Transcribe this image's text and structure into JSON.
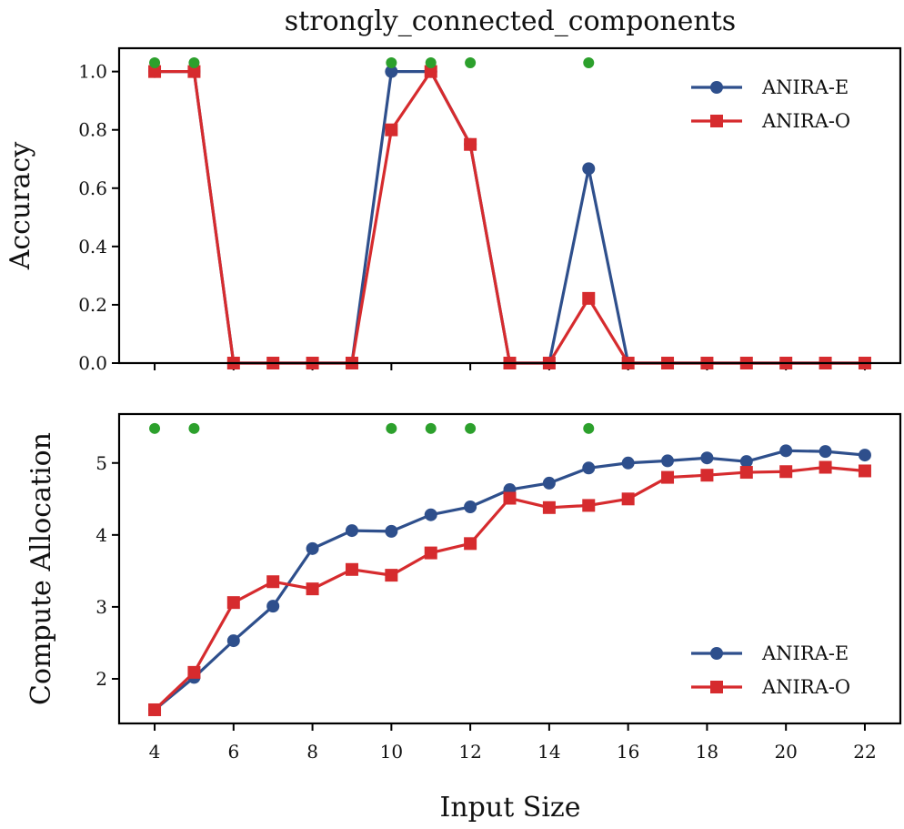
{
  "figure": {
    "title": "strongly_connected_components",
    "xlabel": "Input Size"
  },
  "colors": {
    "anira_e": "#2e4f8c",
    "anira_o": "#d62b2e",
    "marker": "#2ca02c"
  },
  "chart_data": [
    {
      "type": "line",
      "ylabel": "Accuracy",
      "xlim": [
        3.1,
        22.9
      ],
      "ylim": [
        0.0,
        1.08
      ],
      "xticks": [
        4,
        6,
        8,
        10,
        12,
        14,
        16,
        18,
        20,
        22
      ],
      "yticks": [
        0.0,
        0.2,
        0.4,
        0.6,
        0.8,
        1.0
      ],
      "ytick_labels": [
        "0.0",
        "0.2",
        "0.4",
        "0.6",
        "0.8",
        "1.0"
      ],
      "x": [
        4,
        5,
        6,
        7,
        8,
        9,
        10,
        11,
        12,
        13,
        14,
        15,
        16,
        17,
        18,
        19,
        20,
        21,
        22
      ],
      "series": [
        {
          "name": "ANIRA-E",
          "marker": "circle",
          "values": [
            1.0,
            1.0,
            0.0,
            0.0,
            0.0,
            0.0,
            1.0,
            1.0,
            0.75,
            0.0,
            0.0,
            0.667,
            0.0,
            0.0,
            0.0,
            0.0,
            0.0,
            0.0,
            0.0
          ]
        },
        {
          "name": "ANIRA-O",
          "marker": "square",
          "values": [
            1.0,
            1.0,
            0.0,
            0.0,
            0.0,
            0.0,
            0.8,
            1.0,
            0.75,
            0.0,
            0.0,
            0.222,
            0.0,
            0.0,
            0.0,
            0.0,
            0.0,
            0.0,
            0.0
          ]
        }
      ],
      "highlight_x": [
        4,
        5,
        10,
        11,
        12,
        15
      ],
      "highlight_y": 1.03,
      "legend": "upper-right",
      "grid": false
    },
    {
      "type": "line",
      "ylabel": "Compute Allocation",
      "xlim": [
        3.1,
        22.9
      ],
      "ylim": [
        1.38,
        5.68
      ],
      "xticks": [
        4,
        6,
        8,
        10,
        12,
        14,
        16,
        18,
        20,
        22
      ],
      "xtick_labels": [
        "4",
        "6",
        "8",
        "10",
        "12",
        "14",
        "16",
        "18",
        "20",
        "22"
      ],
      "yticks": [
        2,
        3,
        4,
        5
      ],
      "ytick_labels": [
        "2",
        "3",
        "4",
        "5"
      ],
      "x": [
        4,
        5,
        6,
        7,
        8,
        9,
        10,
        11,
        12,
        13,
        14,
        15,
        16,
        17,
        18,
        19,
        20,
        21,
        22
      ],
      "series": [
        {
          "name": "ANIRA-E",
          "marker": "circle",
          "values": [
            1.57,
            2.02,
            2.53,
            3.01,
            3.81,
            4.06,
            4.05,
            4.28,
            4.39,
            4.63,
            4.72,
            4.93,
            5.0,
            5.03,
            5.07,
            5.02,
            5.17,
            5.16,
            5.11
          ]
        },
        {
          "name": "ANIRA-O",
          "marker": "square",
          "values": [
            1.57,
            2.09,
            3.06,
            3.35,
            3.25,
            3.52,
            3.44,
            3.75,
            3.88,
            4.51,
            4.38,
            4.41,
            4.5,
            4.8,
            4.83,
            4.87,
            4.88,
            4.94,
            4.89
          ]
        }
      ],
      "highlight_x": [
        4,
        5,
        10,
        11,
        12,
        15
      ],
      "highlight_y": 5.48,
      "legend": "lower-right",
      "grid": false
    }
  ]
}
